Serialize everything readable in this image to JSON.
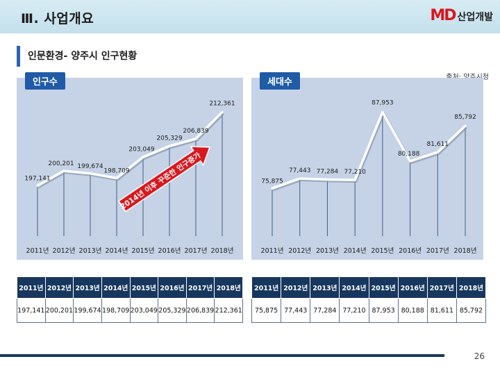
{
  "header": {
    "title": "Ⅲ. 사업개요",
    "logo_mark": "MD",
    "logo_text": "산업개발"
  },
  "section": {
    "title": "인문환경- 양주시 인구현황"
  },
  "source": "출처: 양주시청",
  "colors": {
    "header_bg": "#c3e0ec",
    "accent_blue": "#1f5ba6",
    "panel_bg": "#c6d3e6",
    "table_header": "#17375e",
    "logo_red": "#d9161c",
    "arrow_red": "#d8191f"
  },
  "chart_data": [
    {
      "type": "line",
      "tag": "인구수",
      "categories": [
        "2011년",
        "2012년",
        "2013년",
        "2014년",
        "2015년",
        "2016년",
        "2017년",
        "2018년"
      ],
      "values": [
        197141,
        200201,
        199674,
        198709,
        203049,
        205329,
        206839,
        212361
      ],
      "value_labels": [
        "197,141",
        "200,201",
        "199,674",
        "198,709",
        "203,049",
        "205,329",
        "206,839",
        "212,361"
      ],
      "annotation": "2014년 이후 꾸준한 인구증가",
      "ylim": [
        185000,
        214000
      ],
      "grid": false
    },
    {
      "type": "line",
      "tag": "세대수",
      "categories": [
        "2011년",
        "2012년",
        "2013년",
        "2014년",
        "2015년",
        "2016년",
        "2017년",
        "2018년"
      ],
      "values": [
        75875,
        77443,
        77284,
        77210,
        87953,
        80188,
        81611,
        85792
      ],
      "value_labels": [
        "75,875",
        "77,443",
        "77,284",
        "77,210",
        "87,953",
        "80,188",
        "81,611",
        "85,792"
      ],
      "ylim": [
        67000,
        89000
      ],
      "grid": false
    }
  ],
  "tables": [
    {
      "headers": [
        "2011년",
        "2012년",
        "2013년",
        "2014년",
        "2015년",
        "2016년",
        "2017년",
        "2018년"
      ],
      "values": [
        "197,141",
        "200,201",
        "199,674",
        "198,709",
        "203,049",
        "205,329",
        "206,839",
        "212,361"
      ]
    },
    {
      "headers": [
        "2011년",
        "2012년",
        "2013년",
        "2014년",
        "2015년",
        "2016년",
        "2017년",
        "2018년"
      ],
      "values": [
        "75,875",
        "77,443",
        "77,284",
        "77,210",
        "87,953",
        "80,188",
        "81,611",
        "85,792"
      ]
    }
  ],
  "page_number": "26"
}
